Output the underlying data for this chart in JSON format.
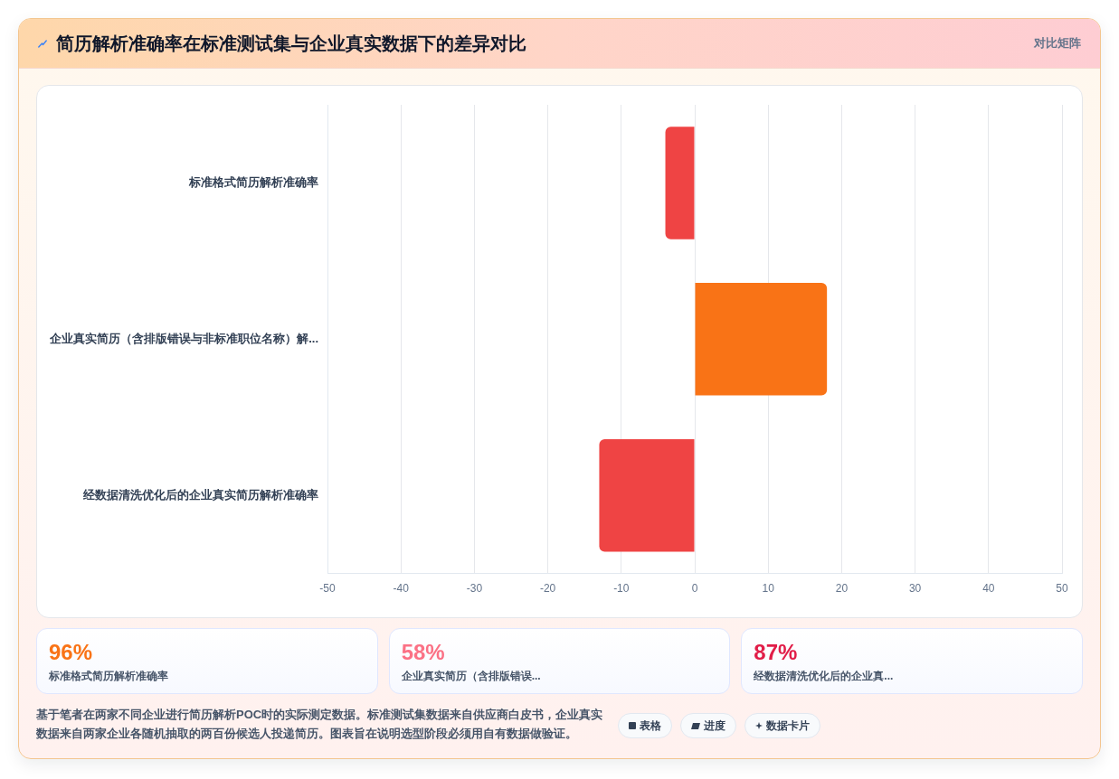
{
  "chart_data": [
    {
      "type": "bar",
      "orientation": "horizontal",
      "title": "简历解析准确率在标准测试集与企业真实数据下的差异对比",
      "subtitle": "对比矩阵",
      "categories": [
        "标准格式简历解析准确率",
        "企业真实简历（含排版错误与非标准职位名称）解...",
        "经数据清洗优化后的企业真实简历解析准确率"
      ],
      "values": [
        -4,
        18,
        -13
      ],
      "colors": [
        "#ef4444",
        "#f97316",
        "#ef4444"
      ],
      "xlim": [
        -50,
        50
      ],
      "xticks": [
        -50,
        -40,
        -30,
        -20,
        -10,
        0,
        10,
        20,
        30,
        40,
        50
      ],
      "grid": "x",
      "annotations": [
        "基于笔者在两家不同企业进行简历解析POC时的实际测定数据。标准测试集数据来自供应商白皮书，企业真实数据来自两家企业各随机抽取的两百份候选人投递简历。图表旨在说明选型阶段必须用自有数据做验证。",
        "表格",
        "进度",
        "数据卡片"
      ]
    },
    {
      "type": "other",
      "annotations": [
        "96%",
        "标准格式简历解析准确率",
        "58%",
        "企业真实简历（含排版错误...",
        "87%",
        "经数据清洗优化后的企业真..."
      ]
    }
  ]
}
